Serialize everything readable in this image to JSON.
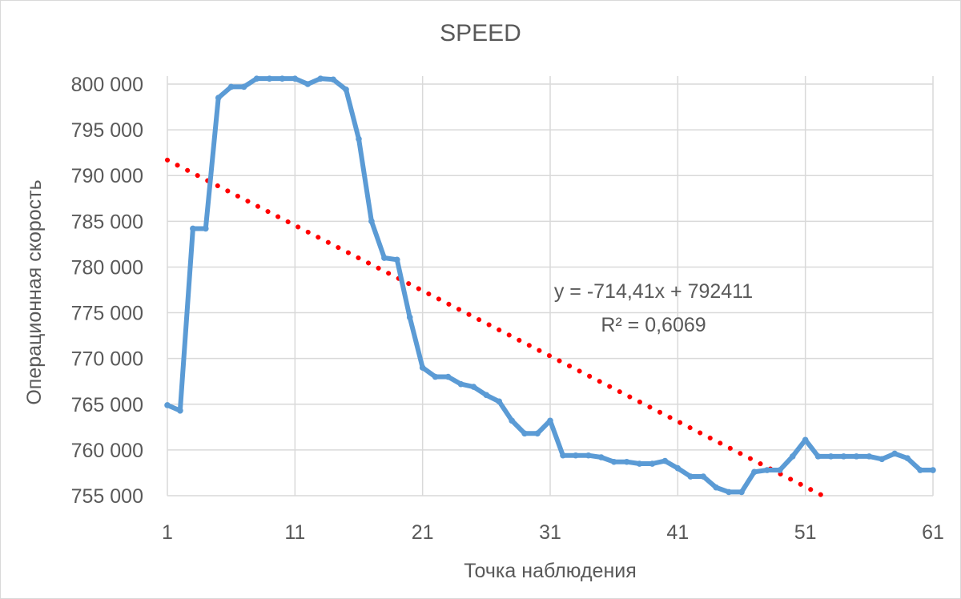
{
  "chart_data": {
    "type": "line",
    "title": "SPEED",
    "xlabel": "Точка наблюдения",
    "ylabel": "Операционная скорость",
    "xlim": [
      1,
      61
    ],
    "ylim": [
      755000,
      800000
    ],
    "x_ticks": [
      1,
      11,
      21,
      31,
      41,
      51,
      61
    ],
    "y_ticks": [
      755000,
      760000,
      765000,
      770000,
      775000,
      780000,
      785000,
      790000,
      795000,
      800000
    ],
    "y_tick_labels": [
      "755 000",
      "760 000",
      "765 000",
      "770 000",
      "775 000",
      "780 000",
      "785 000",
      "790 000",
      "795 000",
      "800 000"
    ],
    "x_tick_labels": [
      "1",
      "11",
      "21",
      "31",
      "41",
      "51",
      "61"
    ],
    "grid": "vertical and horizontal",
    "legend": "none",
    "series": [
      {
        "color": "#5b9bd5",
        "x": [
          1,
          2,
          3,
          4,
          5,
          6,
          7,
          8,
          9,
          10,
          11,
          12,
          13,
          14,
          15,
          16,
          17,
          18,
          19,
          20,
          21,
          22,
          23,
          24,
          25,
          26,
          27,
          28,
          29,
          30,
          31,
          32,
          33,
          34,
          35,
          36,
          37,
          38,
          39,
          40,
          41,
          42,
          43,
          44,
          45,
          46,
          47,
          48,
          49,
          50,
          51,
          52,
          53,
          54,
          55,
          56,
          57,
          58,
          59,
          60,
          61
        ],
        "values": [
          764900,
          764300,
          784200,
          784200,
          798500,
          799700,
          799700,
          800600,
          800600,
          800600,
          800600,
          800000,
          800600,
          800500,
          799400,
          794000,
          785000,
          781000,
          780800,
          774500,
          769000,
          768000,
          768000,
          767200,
          766900,
          766000,
          765300,
          763200,
          761800,
          761800,
          763200,
          759400,
          759400,
          759400,
          759200,
          758700,
          758700,
          758500,
          758500,
          758800,
          758000,
          757100,
          757100,
          755900,
          755400,
          755400,
          757600,
          757800,
          757800,
          759300,
          761100,
          759300,
          759300,
          759300,
          759300,
          759300,
          759000,
          759600,
          759100,
          757800,
          757800
        ]
      }
    ],
    "trendline": {
      "type": "linear",
      "color": "#ff0000",
      "style": "dotted",
      "slope": -714.41,
      "intercept": 792411,
      "equation": "y = -714,41x + 792411",
      "r_squared": "R² = 0,6069"
    }
  }
}
